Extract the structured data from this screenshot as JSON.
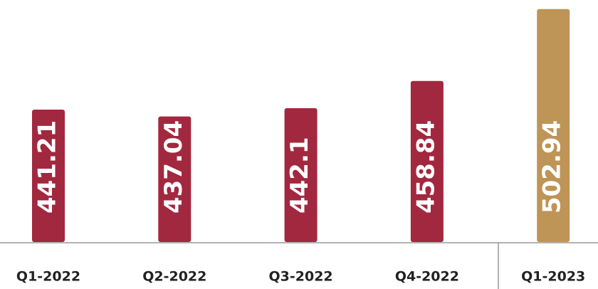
{
  "chart_data": {
    "type": "bar",
    "categories": [
      "Q1-2022",
      "Q2-2022",
      "Q3-2022",
      "Q4-2022",
      "Q1-2023"
    ],
    "values": [
      441.21,
      437.04,
      442.1,
      458.84,
      502.94
    ],
    "colors": [
      "#a2283f",
      "#a2283f",
      "#a2283f",
      "#a2283f",
      "#be9457"
    ],
    "ylim": [
      360,
      505
    ]
  }
}
